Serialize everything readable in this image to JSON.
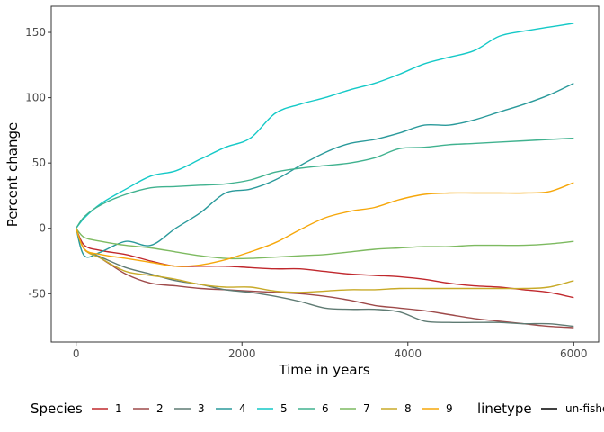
{
  "chart_data": {
    "type": "line",
    "xlabel": "Time in years",
    "ylabel": "Percent change",
    "xlim": [
      -300,
      6300
    ],
    "ylim": [
      -87,
      170
    ],
    "xticks": [
      0,
      2000,
      4000,
      6000
    ],
    "xtick_labels": [
      "0",
      "2000",
      "4000",
      "6000"
    ],
    "yticks": [
      -50,
      0,
      50,
      100,
      150
    ],
    "ytick_labels": [
      "-50",
      "0",
      "50",
      "100",
      "150"
    ],
    "grid": false,
    "legend": {
      "position": "bottom",
      "species_title": "Species",
      "linetype_title": "linetype",
      "linetype_entries": [
        {
          "label": "un-fished",
          "color": "#000000"
        }
      ]
    },
    "x": [
      0,
      100,
      300,
      600,
      900,
      1200,
      1500,
      1800,
      2100,
      2400,
      2700,
      3000,
      3300,
      3600,
      3900,
      4200,
      4500,
      4800,
      5100,
      5400,
      5700,
      6000
    ],
    "series": [
      {
        "name": "1",
        "color": "#c0282d",
        "values": [
          0,
          -13,
          -17,
          -20,
          -25,
          -29,
          -29,
          -29,
          -30,
          -31,
          -31,
          -33,
          -35,
          -36,
          -37,
          -39,
          -42,
          -44,
          -45,
          -47,
          -49,
          -53
        ]
      },
      {
        "name": "2",
        "color": "#9e4a4a",
        "values": [
          0,
          -16,
          -23,
          -35,
          -42,
          -44,
          -46,
          -47,
          -48,
          -49,
          -50,
          -52,
          -55,
          -59,
          -61,
          -63,
          -66,
          -69,
          -71,
          -73,
          -75,
          -76
        ]
      },
      {
        "name": "3",
        "color": "#5f7b73",
        "values": [
          0,
          -16,
          -22,
          -30,
          -35,
          -40,
          -43,
          -47,
          -49,
          -52,
          -56,
          -61,
          -62,
          -62,
          -64,
          -71,
          -72,
          -72,
          -72,
          -73,
          -73,
          -75
        ]
      },
      {
        "name": "4",
        "color": "#2a9a9b",
        "values": [
          0,
          -21,
          -18,
          -10,
          -13,
          0,
          12,
          27,
          30,
          37,
          48,
          58,
          65,
          68,
          73,
          79,
          79,
          83,
          89,
          95,
          102,
          111
        ]
      },
      {
        "name": "5",
        "color": "#14c9c7",
        "values": [
          0,
          8,
          19,
          30,
          40,
          44,
          53,
          62,
          69,
          88,
          95,
          100,
          106,
          111,
          118,
          126,
          131,
          136,
          147,
          151,
          154,
          157
        ]
      },
      {
        "name": "6",
        "color": "#40b28f",
        "values": [
          0,
          9,
          18,
          26,
          31,
          32,
          33,
          34,
          37,
          43,
          46,
          48,
          50,
          54,
          61,
          62,
          64,
          65,
          66,
          67,
          68,
          69
        ]
      },
      {
        "name": "7",
        "color": "#7dba60",
        "values": [
          0,
          -7,
          -10,
          -13,
          -15,
          -18,
          -21,
          -23,
          -23,
          -22,
          -21,
          -20,
          -18,
          -16,
          -15,
          -14,
          -14,
          -13,
          -13,
          -13,
          -12,
          -10
        ]
      },
      {
        "name": "8",
        "color": "#c8aa28",
        "values": [
          0,
          -16,
          -23,
          -33,
          -36,
          -39,
          -43,
          -45,
          -45,
          -48,
          -49,
          -48,
          -47,
          -47,
          -46,
          -46,
          -46,
          -46,
          -46,
          -46,
          -45,
          -40
        ]
      },
      {
        "name": "9",
        "color": "#f6a70a",
        "values": [
          0,
          -16,
          -20,
          -23,
          -26,
          -29,
          -28,
          -24,
          -18,
          -11,
          -1,
          8,
          13,
          16,
          22,
          26,
          27,
          27,
          27,
          27,
          28,
          35
        ]
      }
    ]
  }
}
